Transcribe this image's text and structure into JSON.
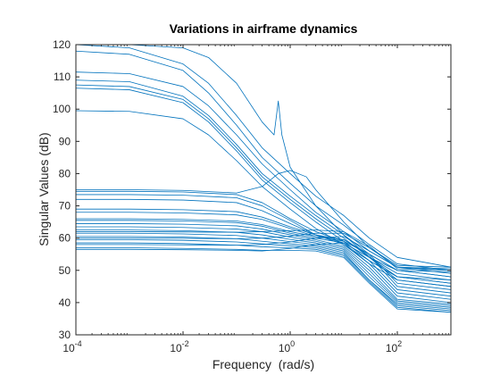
{
  "chart_data": {
    "type": "line",
    "title": "Variations in airframe dynamics",
    "xlabel": "Frequency  (rad/s)",
    "ylabel": "Singular Values (dB)",
    "xscale": "log",
    "xlim": [
      0.0001,
      1000
    ],
    "ylim": [
      30,
      120
    ],
    "xticks": [
      0.0001,
      0.01,
      1,
      100
    ],
    "xtick_labels": [
      {
        "base": "10",
        "exp": "-4"
      },
      {
        "base": "10",
        "exp": "-2"
      },
      {
        "base": "10",
        "exp": "0"
      },
      {
        "base": "10",
        "exp": "2"
      }
    ],
    "yticks": [
      30,
      40,
      50,
      60,
      70,
      80,
      90,
      100,
      110,
      120
    ],
    "ytick_labels": [
      "30",
      "40",
      "50",
      "60",
      "70",
      "80",
      "90",
      "100",
      "110",
      "120"
    ],
    "grid": false,
    "box": true,
    "line_color": "#0072BD",
    "series": [
      {
        "x": [
          0.0001,
          0.001,
          0.01,
          0.03,
          0.1,
          0.3,
          1,
          3,
          10,
          30,
          100,
          1000
        ],
        "y": [
          120,
          119,
          114,
          108,
          98,
          88,
          80,
          73,
          67,
          60,
          54,
          51
        ]
      },
      {
        "x": [
          0.0001,
          0.001,
          0.01,
          0.03,
          0.1,
          0.3,
          1,
          3,
          10,
          30,
          100,
          1000
        ],
        "y": [
          118,
          117,
          112,
          105,
          95,
          85,
          77,
          70,
          64,
          58,
          52,
          50
        ]
      },
      {
        "x": [
          0.0001,
          0.001,
          0.01,
          0.03,
          0.1,
          0.3,
          1,
          3,
          10,
          30,
          100,
          1000
        ],
        "y": [
          111.5,
          111,
          107,
          101,
          92,
          83,
          75,
          68,
          62,
          56,
          51,
          49
        ]
      },
      {
        "x": [
          0.0001,
          0.001,
          0.01,
          0.03,
          0.1,
          0.3,
          1,
          3,
          10,
          30,
          100,
          1000
        ],
        "y": [
          109,
          108.5,
          104,
          98,
          89,
          80,
          73,
          67,
          61,
          55,
          50,
          48
        ]
      },
      {
        "x": [
          0.0001,
          0.001,
          0.01,
          0.03,
          0.1,
          0.3,
          1,
          3,
          10,
          30,
          100,
          1000
        ],
        "y": [
          107.5,
          107,
          103,
          97,
          88,
          79,
          72,
          66,
          60,
          54,
          49,
          47
        ]
      },
      {
        "x": [
          0.0001,
          0.001,
          0.01,
          0.03,
          0.1,
          0.3,
          1,
          3,
          10,
          30,
          100,
          1000
        ],
        "y": [
          106.5,
          106,
          102,
          96,
          87,
          78,
          71,
          65,
          59,
          53,
          48,
          46
        ]
      },
      {
        "x": [
          0.0001,
          0.001,
          0.01,
          0.03,
          0.1,
          0.3,
          1,
          3,
          10,
          30,
          100,
          1000
        ],
        "y": [
          99.5,
          99.3,
          97,
          92,
          84,
          76,
          69,
          63,
          58,
          52,
          47,
          45
        ]
      },
      {
        "x": [
          0.0001,
          0.001,
          0.01,
          0.03,
          0.1,
          0.3,
          0.5,
          0.6,
          0.7,
          1,
          3,
          10,
          30,
          100,
          1000
        ],
        "y": [
          120,
          120,
          119,
          116,
          108,
          96,
          92,
          102.5,
          92,
          82,
          70,
          61,
          54,
          48,
          46
        ]
      },
      {
        "x": [
          0.0001,
          0.001,
          0.01,
          0.1,
          0.3,
          0.6,
          1,
          2,
          3,
          10,
          30,
          100,
          1000
        ],
        "y": [
          75,
          75,
          74.8,
          74,
          76,
          80,
          81,
          79,
          75,
          65,
          57,
          51,
          50
        ]
      },
      {
        "x": [
          0.0001,
          0.001,
          0.01,
          0.1,
          0.3,
          1,
          3,
          10,
          30,
          100,
          1000
        ],
        "y": [
          74.5,
          74.5,
          74.3,
          73.5,
          71,
          66,
          62,
          59,
          55,
          50,
          48
        ]
      },
      {
        "x": [
          0.0001,
          0.001,
          0.01,
          0.1,
          0.3,
          1,
          3,
          10,
          30,
          100,
          1000
        ],
        "y": [
          73.5,
          73.5,
          73.3,
          72.5,
          70,
          65.5,
          61,
          58,
          53,
          48,
          47
        ]
      },
      {
        "x": [
          0.0001,
          0.001,
          0.01,
          0.1,
          0.3,
          1,
          3,
          10,
          30,
          100,
          1000
        ],
        "y": [
          72,
          72,
          71.8,
          71,
          68.5,
          64.5,
          61,
          58.5,
          54,
          47,
          45
        ]
      },
      {
        "x": [
          0.0001,
          0.001,
          0.01,
          0.1,
          0.3,
          1,
          3,
          10,
          30,
          100,
          1000
        ],
        "y": [
          69,
          69,
          68.8,
          68.2,
          66.5,
          63.5,
          61,
          59.5,
          55,
          46,
          44
        ]
      },
      {
        "x": [
          0.0001,
          0.001,
          0.01,
          0.1,
          0.3,
          1,
          3,
          10,
          30,
          100,
          1000
        ],
        "y": [
          68,
          68,
          67.8,
          67.2,
          65.8,
          63,
          60.5,
          59.5,
          54.5,
          45,
          43
        ]
      },
      {
        "x": [
          0.0001,
          0.001,
          0.01,
          0.1,
          0.3,
          1,
          3,
          10,
          30,
          100,
          1000
        ],
        "y": [
          66,
          66,
          65.8,
          65.3,
          64.2,
          62,
          60.5,
          59,
          53,
          44,
          42
        ]
      },
      {
        "x": [
          0.0001,
          0.001,
          0.01,
          0.1,
          0.3,
          1,
          3,
          10,
          30,
          100,
          1000
        ],
        "y": [
          65.5,
          65.5,
          65.3,
          64.8,
          63.7,
          61.5,
          60,
          58.5,
          52,
          43,
          41
        ]
      },
      {
        "x": [
          0.0001,
          0.001,
          0.01,
          0.1,
          0.3,
          1,
          3,
          10,
          30,
          100,
          1000
        ],
        "y": [
          64.5,
          64.5,
          64.3,
          63.8,
          62.8,
          61,
          59.5,
          57.5,
          51,
          42,
          40
        ]
      },
      {
        "x": [
          0.0001,
          0.001,
          0.01,
          0.1,
          0.3,
          1,
          3,
          10,
          30,
          100,
          1000
        ],
        "y": [
          63.5,
          63.5,
          63.3,
          62.8,
          62,
          60.3,
          59,
          57,
          50,
          41,
          39.5
        ]
      },
      {
        "x": [
          0.0001,
          0.001,
          0.01,
          0.1,
          0.3,
          1,
          3,
          10,
          30,
          100,
          1000
        ],
        "y": [
          62.5,
          62.5,
          62.3,
          61.8,
          61,
          59.6,
          58.5,
          56.5,
          49,
          40.5,
          39
        ]
      },
      {
        "x": [
          0.0001,
          0.001,
          0.01,
          0.1,
          0.3,
          1,
          3,
          10,
          30,
          100,
          1000
        ],
        "y": [
          61.5,
          61.5,
          61.3,
          60.8,
          60,
          58.9,
          58,
          56,
          48,
          40,
          38.5
        ]
      },
      {
        "x": [
          0.0001,
          0.001,
          0.01,
          0.1,
          0.3,
          1,
          3,
          10,
          30,
          100,
          1000
        ],
        "y": [
          60.5,
          60.5,
          60.3,
          59.8,
          59,
          58.2,
          57.5,
          55.5,
          47,
          39.5,
          38
        ]
      },
      {
        "x": [
          0.0001,
          0.001,
          0.01,
          0.1,
          0.3,
          1,
          3,
          10,
          30,
          100,
          1000
        ],
        "y": [
          59.5,
          59.5,
          59.3,
          58.8,
          58.2,
          57.6,
          57,
          55,
          47,
          39,
          37.5
        ]
      },
      {
        "x": [
          0.0001,
          0.001,
          0.01,
          0.1,
          0.3,
          1,
          3,
          10,
          30,
          100,
          1000
        ],
        "y": [
          58.5,
          58.5,
          58.3,
          57.8,
          57.3,
          57,
          56.5,
          54.5,
          46.5,
          38.5,
          37
        ]
      },
      {
        "x": [
          0.0001,
          0.001,
          0.01,
          0.1,
          0.3,
          1,
          3,
          10,
          30,
          100,
          1000
        ],
        "y": [
          57,
          57,
          56.8,
          56.5,
          56.2,
          56.2,
          56,
          54,
          46,
          38,
          37
        ]
      },
      {
        "x": [
          0.0001,
          0.001,
          0.01,
          0.1,
          0.3,
          1,
          3,
          10,
          30,
          100,
          1000
        ],
        "y": [
          56.5,
          56.5,
          56.4,
          56.2,
          56,
          56.8,
          58,
          58.5,
          54,
          50,
          49.5
        ]
      },
      {
        "x": [
          0.0001,
          0.001,
          0.01,
          0.1,
          0.3,
          1,
          3,
          10,
          30,
          100,
          1000
        ],
        "y": [
          58,
          58,
          57.9,
          57.8,
          58,
          58.8,
          60,
          60.5,
          56,
          51,
          50.5
        ]
      },
      {
        "x": [
          0.0001,
          0.001,
          0.01,
          0.1,
          0.3,
          1,
          3,
          10,
          30,
          100,
          1000
        ],
        "y": [
          60,
          60,
          59.9,
          59.8,
          60,
          60.6,
          61.5,
          61.5,
          57,
          51.5,
          51
        ]
      },
      {
        "x": [
          0.0001,
          0.001,
          0.01,
          0.1,
          0.3,
          1,
          3,
          10,
          30,
          100,
          1000
        ],
        "y": [
          62,
          62,
          61.9,
          61.8,
          62,
          62.3,
          62.5,
          62,
          57.5,
          50.5,
          50
        ]
      }
    ]
  }
}
